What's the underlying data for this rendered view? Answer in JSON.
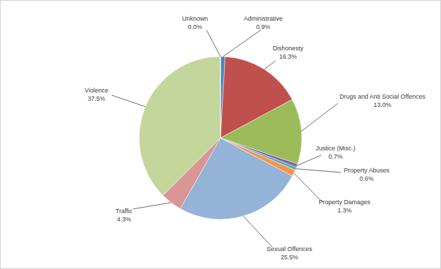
{
  "chart_data": {
    "type": "pie",
    "categories": [
      "Administrative",
      "Dishonesty",
      "Drugs and Anti Social Offences",
      "Justice (Misc.)",
      "Property Abuses",
      "Property Damages",
      "Sexual Offences",
      "Traffic",
      "Violence",
      "Unknown"
    ],
    "values": [
      0.9,
      16.3,
      13.0,
      0.7,
      0.6,
      1.3,
      25.5,
      4.3,
      37.5,
      0.0
    ],
    "value_labels": [
      "0.9%",
      "16.3%",
      "13.0%",
      "0.7%",
      "0.6%",
      "1.3%",
      "25.5%",
      "4.3%",
      "37.5%",
      "0.0%"
    ],
    "colors": [
      "#4f81bd",
      "#c0504d",
      "#9bbb59",
      "#8064a2",
      "#4bacc6",
      "#f79646",
      "#95b3d7",
      "#d99694",
      "#c3d69b",
      "#b3a2c7"
    ],
    "data_labels": true
  }
}
